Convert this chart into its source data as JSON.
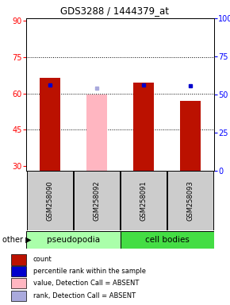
{
  "title": "GDS3288 / 1444379_at",
  "samples": [
    "GSM258090",
    "GSM258092",
    "GSM258091",
    "GSM258093"
  ],
  "bar_values_red": [
    66.5,
    null,
    64.5,
    57.0
  ],
  "bar_values_pink": [
    null,
    59.5,
    null,
    null
  ],
  "dot_values_blue": [
    63.5,
    null,
    63.5,
    63.0
  ],
  "dot_values_lightblue": [
    null,
    62.0,
    null,
    null
  ],
  "ylim_left": [
    28,
    91
  ],
  "ylim_right": [
    0,
    100
  ],
  "yticks_left": [
    30,
    45,
    60,
    75,
    90
  ],
  "yticks_right": [
    0,
    25,
    50,
    75,
    100
  ],
  "ytick_labels_left": [
    "30",
    "45",
    "60",
    "75",
    "90"
  ],
  "ytick_labels_right": [
    "0",
    "25",
    "50",
    "75",
    "100%"
  ],
  "hlines": [
    45,
    60,
    75
  ],
  "bar_width": 0.45,
  "red_color": "#BB1100",
  "pink_color": "#FFB6C1",
  "blue_color": "#0000CC",
  "lightblue_color": "#AAAADD",
  "pseudo_color": "#AAFFAA",
  "cell_color": "#44DD44",
  "gray_color": "#CCCCCC",
  "legend_labels": [
    "count",
    "percentile rank within the sample",
    "value, Detection Call = ABSENT",
    "rank, Detection Call = ABSENT"
  ],
  "legend_colors": [
    "#BB1100",
    "#0000CC",
    "#FFB6C1",
    "#AAAADD"
  ]
}
